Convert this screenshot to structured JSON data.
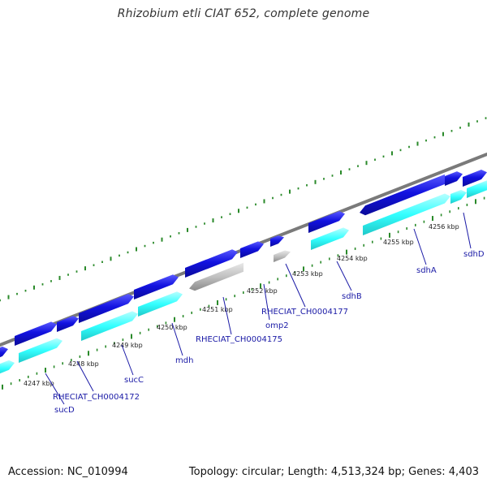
{
  "title": "Rhizobium etli CIAT 652, complete genome",
  "footer": {
    "accession": "Accession: NC_010994",
    "topology": "Topology: circular; Length: 4,513,324 bp; Genes: 4,403"
  },
  "kbp_ticks": [
    "4247 kbp",
    "4248 kbp",
    "4249 kbp",
    "4250 kbp",
    "4251 kbp",
    "4252 kbp",
    "4253 kbp",
    "4254 kbp",
    "4255 kbp",
    "4256 kbp"
  ],
  "genes": [
    {
      "label": "sucD"
    },
    {
      "label": "RHECIAT_CH0004172"
    },
    {
      "label": "sucC"
    },
    {
      "label": "mdh"
    },
    {
      "label": "RHECIAT_CH0004175"
    },
    {
      "label": "omp2"
    },
    {
      "label": "RHECIAT_CH0004177"
    },
    {
      "label": "sdhB"
    },
    {
      "label": "sdhA"
    },
    {
      "label": "sdhD"
    }
  ],
  "colors": {
    "forward_cds": "#1212e0",
    "reverse_cds": "#33ffff",
    "other_feature": "#bdbdbd",
    "backbone": "#7a7a7a",
    "tick": "#2a8a2a",
    "label": "#1a1aa6"
  }
}
